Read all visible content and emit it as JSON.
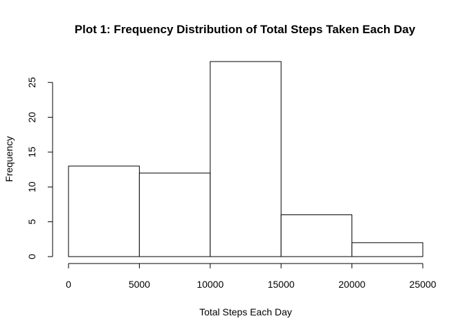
{
  "chart_data": {
    "type": "bar",
    "histogram": true,
    "title": "Plot 1: Frequency Distribution of Total Steps Taken Each Day",
    "xlabel": "Total Steps Each Day",
    "ylabel": "Frequency",
    "bins": [
      {
        "x0": 0,
        "x1": 5000,
        "value": 13
      },
      {
        "x0": 5000,
        "x1": 10000,
        "value": 12
      },
      {
        "x0": 10000,
        "x1": 15000,
        "value": 28
      },
      {
        "x0": 15000,
        "x1": 20000,
        "value": 6
      },
      {
        "x0": 20000,
        "x1": 25000,
        "value": 2
      }
    ],
    "xlim": [
      0,
      25000
    ],
    "ylim": [
      0,
      28
    ],
    "x_ticks": [
      0,
      5000,
      10000,
      15000,
      20000,
      25000
    ],
    "x_tick_labels": [
      "0",
      "5000",
      "10000",
      "15000",
      "20000",
      "25000"
    ],
    "y_ticks": [
      0,
      5,
      10,
      15,
      20,
      25
    ],
    "y_tick_labels": [
      "0",
      "5",
      "10",
      "15",
      "20",
      "25"
    ],
    "grid": false,
    "legend": "none",
    "bar_fill": "#ffffff",
    "bar_stroke": "#000000"
  }
}
